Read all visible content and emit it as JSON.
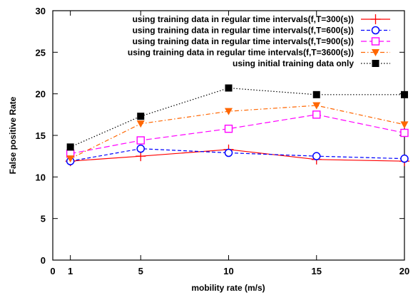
{
  "chart_data": {
    "type": "line",
    "title": "",
    "xlabel": "mobility rate (m/s)",
    "ylabel": "False positive Rate",
    "xlim": [
      0,
      20
    ],
    "ylim": [
      0,
      30
    ],
    "xticks": [
      0,
      1,
      5,
      10,
      15,
      20
    ],
    "yticks": [
      0,
      5,
      10,
      15,
      20,
      25,
      30
    ],
    "grid": false,
    "legend_position": "top-right",
    "x": [
      1,
      5,
      10,
      15,
      20
    ],
    "series": [
      {
        "name": "using training data in regular time intervals(f,T=300(s))",
        "values": [
          11.9,
          12.5,
          13.3,
          12.1,
          11.9
        ],
        "color": "#ff0000",
        "marker": "plus",
        "dash": "solid"
      },
      {
        "name": "using training data in regular time intervals(f,T=600(s))",
        "values": [
          11.9,
          13.4,
          12.9,
          12.5,
          12.2
        ],
        "color": "#0000ff",
        "marker": "circle",
        "dash": "dashed"
      },
      {
        "name": "using training data in regular time intervals(f,T=900(s))",
        "values": [
          12.8,
          14.4,
          15.8,
          17.5,
          15.3
        ],
        "color": "#ff00ff",
        "marker": "square-open",
        "dash": "longdash"
      },
      {
        "name": "using training data in regular time intervals(f,T=3600(s))",
        "values": [
          12.2,
          16.4,
          17.9,
          18.6,
          16.3
        ],
        "color": "#ff6600",
        "marker": "triangle-down",
        "dash": "dashdot"
      },
      {
        "name": "using initial training data only",
        "values": [
          13.6,
          17.3,
          20.7,
          19.9,
          19.9
        ],
        "color": "#000000",
        "marker": "square-filled",
        "dash": "dotted"
      }
    ]
  }
}
